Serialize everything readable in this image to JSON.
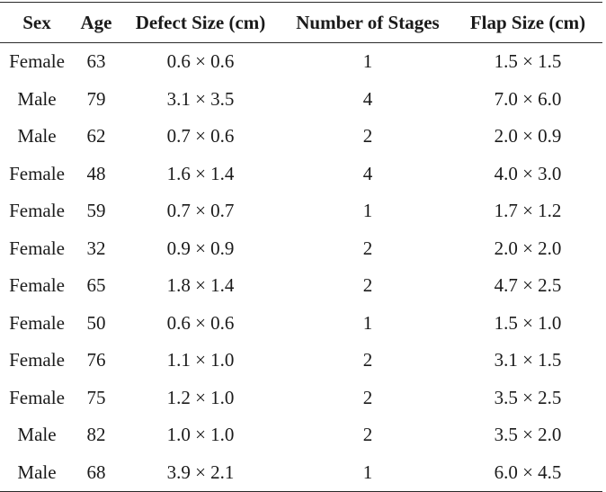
{
  "table": {
    "headers": [
      "Sex",
      "Age",
      "Defect Size (cm)",
      "Number of Stages",
      "Flap Size (cm)"
    ],
    "rows": [
      [
        "Female",
        "63",
        "0.6 × 0.6",
        "1",
        "1.5 × 1.5"
      ],
      [
        "Male",
        "79",
        "3.1 × 3.5",
        "4",
        "7.0 × 6.0"
      ],
      [
        "Male",
        "62",
        "0.7 × 0.6",
        "2",
        "2.0 × 0.9"
      ],
      [
        "Female",
        "48",
        "1.6 × 1.4",
        "4",
        "4.0 × 3.0"
      ],
      [
        "Female",
        "59",
        "0.7 × 0.7",
        "1",
        "1.7 × 1.2"
      ],
      [
        "Female",
        "32",
        "0.9 × 0.9",
        "2",
        "2.0 × 2.0"
      ],
      [
        "Female",
        "65",
        "1.8 × 1.4",
        "2",
        "4.7 × 2.5"
      ],
      [
        "Female",
        "50",
        "0.6 × 0.6",
        "1",
        "1.5 × 1.0"
      ],
      [
        "Female",
        "76",
        "1.1 × 1.0",
        "2",
        "3.1 × 1.5"
      ],
      [
        "Female",
        "75",
        "1.2 × 1.0",
        "2",
        "3.5 × 2.5"
      ],
      [
        "Male",
        "82",
        "1.0 × 1.0",
        "2",
        "3.5 × 2.0"
      ],
      [
        "Male",
        "68",
        "3.9 × 2.1",
        "1",
        "6.0 × 4.5"
      ]
    ]
  }
}
